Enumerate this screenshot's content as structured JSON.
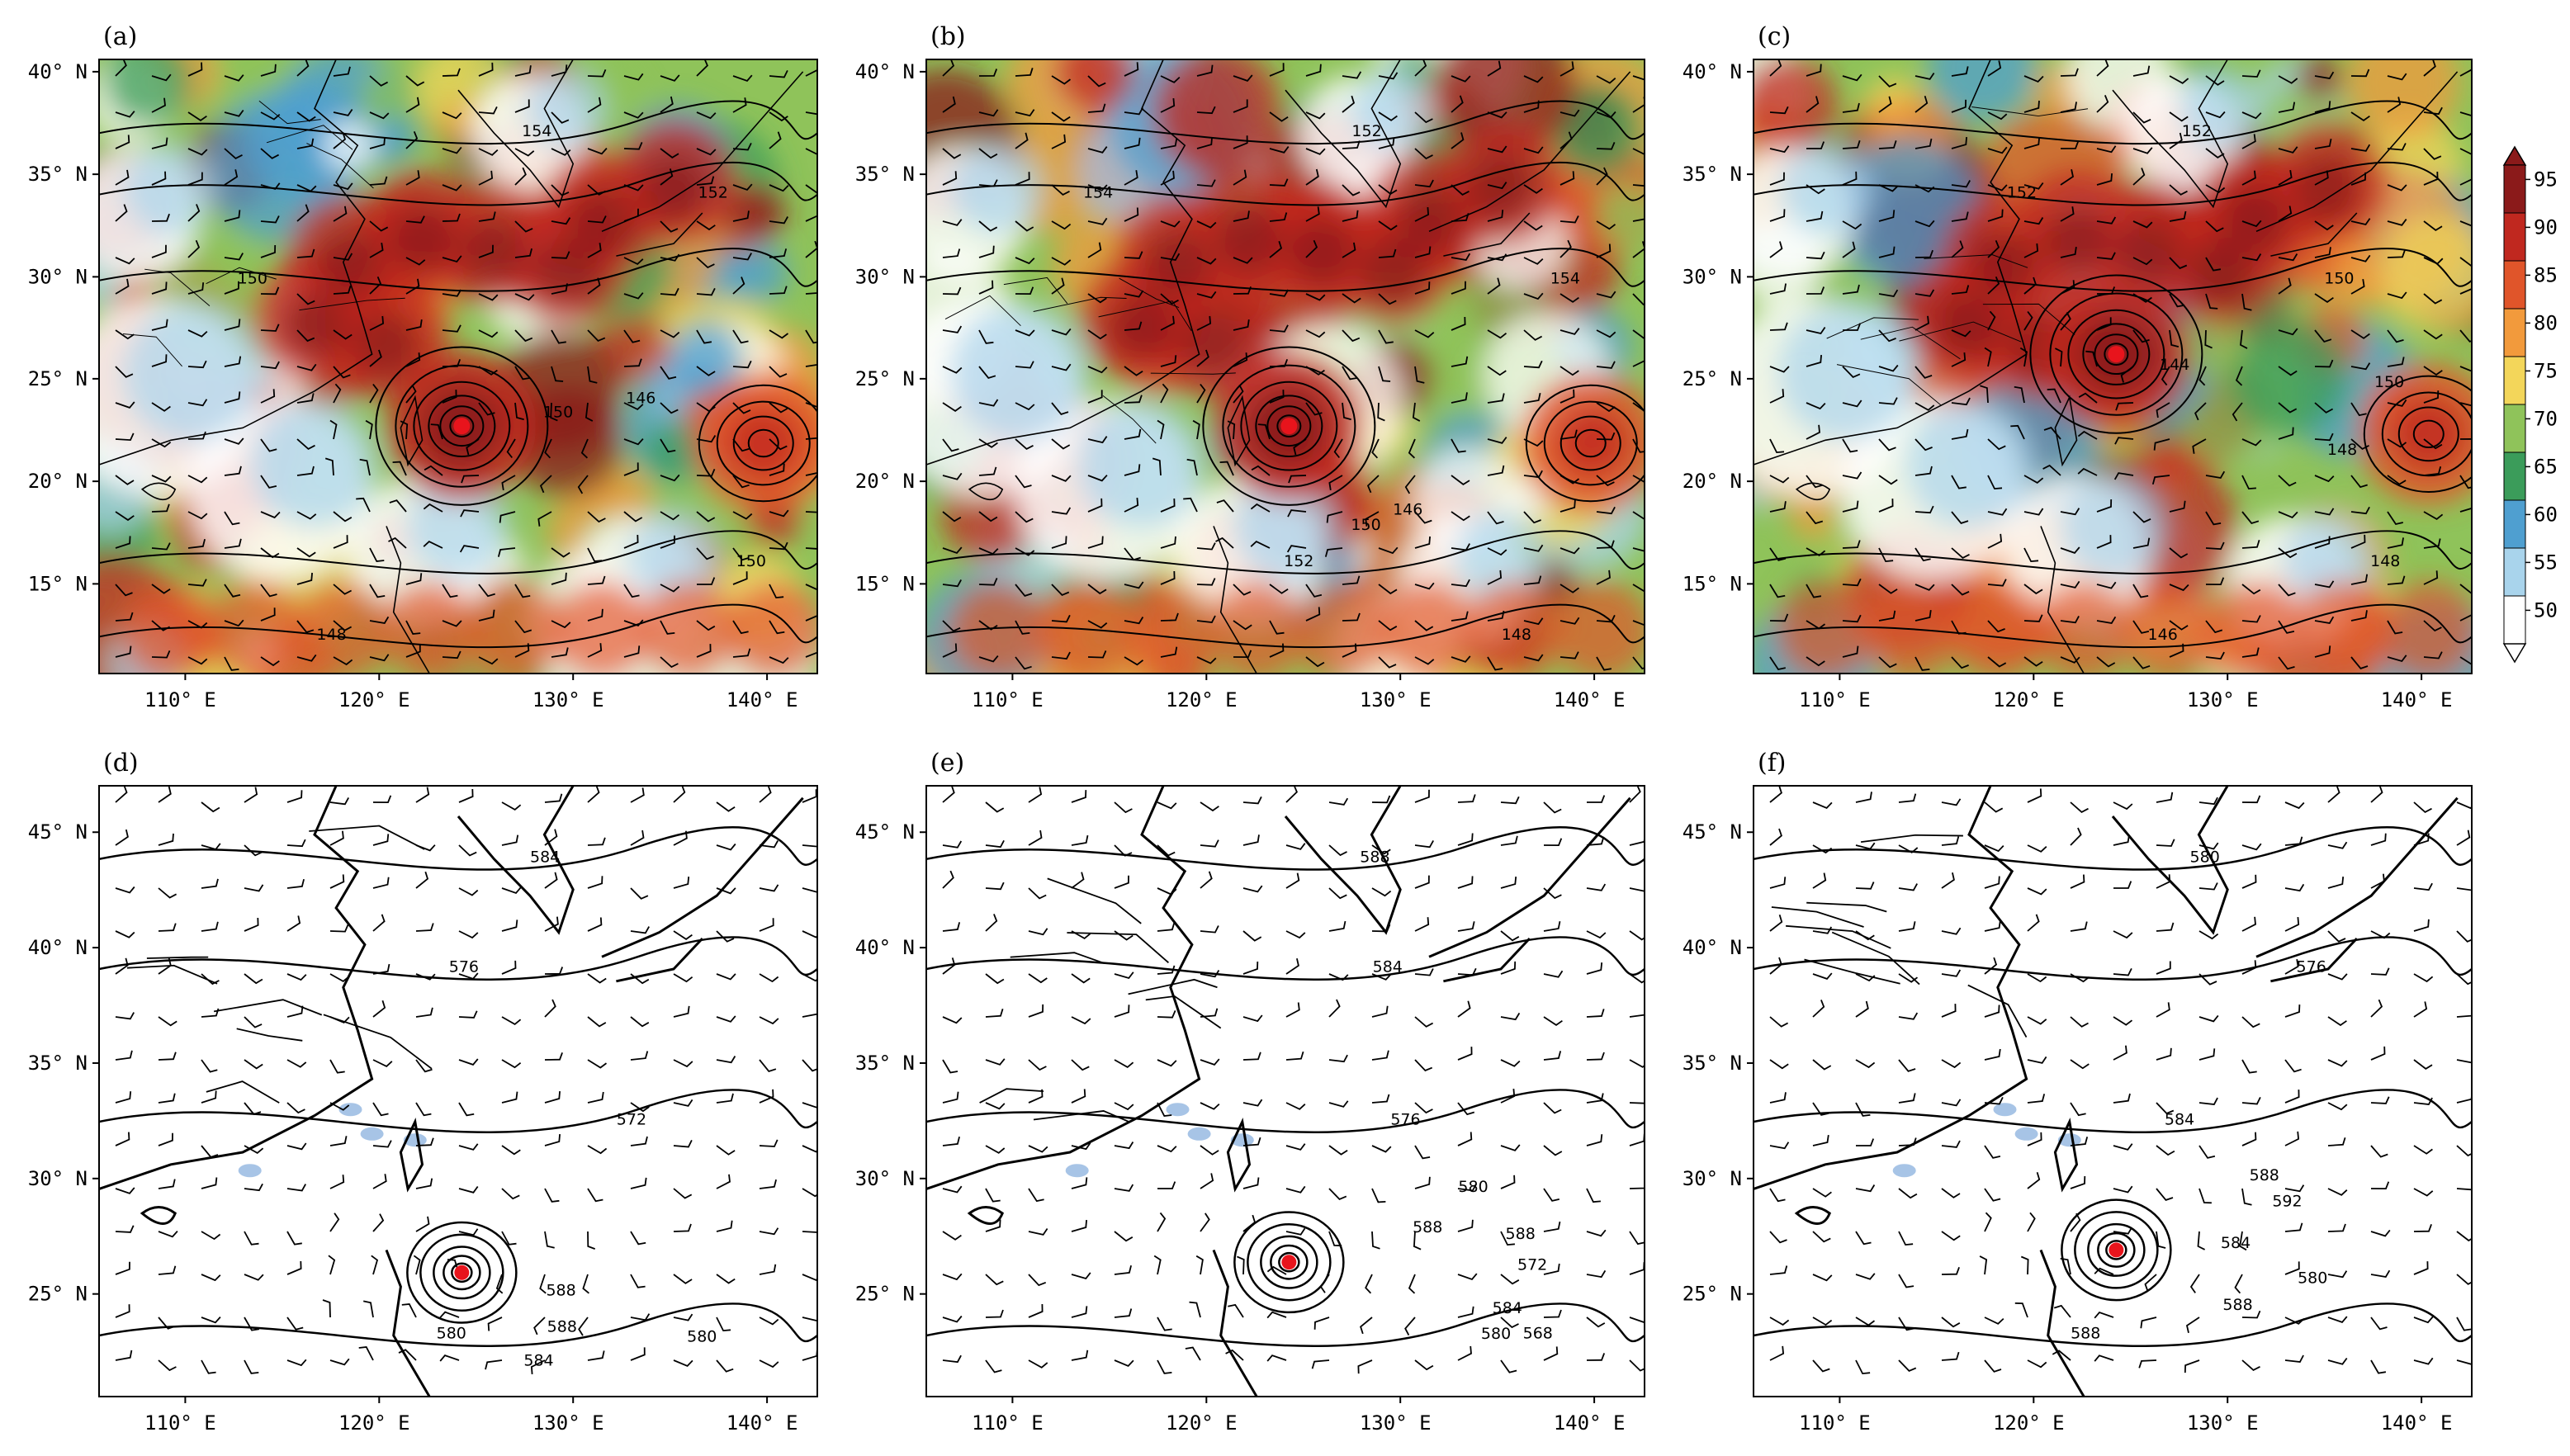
{
  "panels": [
    {
      "label": "(a)",
      "kind": "shaded",
      "contour_labels": [
        "154",
        "152",
        "150",
        "150",
        "148",
        "146",
        "150"
      ]
    },
    {
      "label": "(b)",
      "kind": "shaded",
      "contour_labels": [
        "152",
        "154",
        "154",
        "152",
        "148",
        "146",
        "150"
      ]
    },
    {
      "label": "(c)",
      "kind": "shaded",
      "contour_labels": [
        "152",
        "152",
        "150",
        "148",
        "146",
        "144",
        "150",
        "148"
      ]
    },
    {
      "label": "(d)",
      "kind": "lines",
      "contour_labels": [
        "584",
        "576",
        "572",
        "580",
        "588",
        "584",
        "588",
        "580"
      ]
    },
    {
      "label": "(e)",
      "kind": "lines",
      "contour_labels": [
        "588",
        "584",
        "576",
        "568",
        "572",
        "580",
        "588",
        "584",
        "580",
        "588"
      ]
    },
    {
      "label": "(f)",
      "kind": "lines",
      "contour_labels": [
        "580",
        "576",
        "584",
        "588",
        "592",
        "588",
        "588",
        "580",
        "584"
      ]
    }
  ],
  "top_row_axes": {
    "x_ticks": [
      "110° E",
      "120° E",
      "130° E",
      "140° E"
    ],
    "y_ticks": [
      "40° N",
      "35° N",
      "30° N",
      "25° N",
      "20° N",
      "15° N"
    ]
  },
  "bottom_row_axes": {
    "x_ticks": [
      "110° E",
      "120° E",
      "130° E",
      "140° E"
    ],
    "y_ticks": [
      "45° N",
      "40° N",
      "35° N",
      "30° N",
      "25° N"
    ]
  },
  "colorbar": {
    "labels": [
      "95",
      "90",
      "85",
      "80",
      "75",
      "70",
      "65",
      "60",
      "55",
      "50"
    ],
    "colors": [
      "#8b1a1a",
      "#c0281f",
      "#e0552a",
      "#f29a3c",
      "#f3d65a",
      "#8fc35a",
      "#3b9c5a",
      "#4f9fd0",
      "#a9d4ec",
      "#ffffff"
    ]
  },
  "colors": {
    "typhoon_marker": "#e8141c",
    "land_patch": "#a7c4e6"
  }
}
